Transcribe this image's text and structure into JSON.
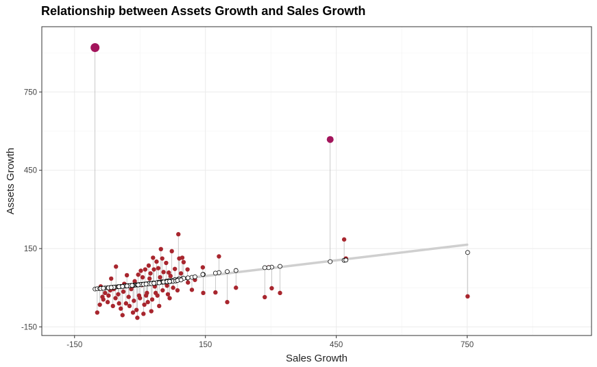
{
  "chart_data": {
    "type": "scatter",
    "title": "Relationship between Assets Growth and Sales Growth",
    "xlabel": "Sales Growth",
    "ylabel": "Assets Growth",
    "xlim": [
      -225,
      1035
    ],
    "ylim": [
      -183,
      1000
    ],
    "x_ticks": [
      -150,
      150,
      450,
      750
    ],
    "y_ticks": [
      -150,
      150,
      450,
      750
    ],
    "grid": true,
    "legend": "none",
    "regression_line": {
      "x": [
        -100,
        750
      ],
      "y": [
        -5,
        165
      ],
      "color": "#cfcfcf"
    },
    "colors": {
      "actual": "#a8262e",
      "outlier": "#a3155c",
      "predicted_stroke": "#000000",
      "residual": "#b3b3b3"
    },
    "points": [
      {
        "x": -103,
        "ya": 920,
        "yp": -5,
        "s": 3
      },
      {
        "x": 436,
        "ya": 568,
        "yp": 100,
        "s": 2
      },
      {
        "x": 468,
        "ya": 185,
        "yp": 105,
        "s": 1
      },
      {
        "x": 472,
        "ya": 112,
        "yp": 106,
        "s": 1
      },
      {
        "x": 751,
        "ya": -33,
        "yp": 135,
        "s": 1
      },
      {
        "x": 88,
        "ya": 205,
        "yp": 33,
        "s": 1
      },
      {
        "x": 321,
        "ya": -20,
        "yp": 82,
        "s": 1
      },
      {
        "x": 302,
        "ya": -2,
        "yp": 79,
        "s": 1
      },
      {
        "x": 295,
        "ya": 78,
        "yp": 77,
        "s": 1
      },
      {
        "x": 286,
        "ya": -36,
        "yp": 77,
        "s": 1
      },
      {
        "x": 181,
        "ya": 120,
        "yp": 58,
        "s": 1
      },
      {
        "x": 173,
        "ya": -18,
        "yp": 56,
        "s": 1
      },
      {
        "x": 200,
        "ya": -55,
        "yp": 62,
        "s": 1
      },
      {
        "x": 220,
        "ya": 0,
        "yp": 66,
        "s": 1
      },
      {
        "x": 145,
        "ya": -20,
        "yp": 51,
        "s": 1
      },
      {
        "x": 109,
        "ya": 70,
        "yp": 37,
        "s": 1
      },
      {
        "x": 97,
        "ya": 115,
        "yp": 35,
        "s": 1
      },
      {
        "x": 119,
        "ya": -8,
        "yp": 40,
        "s": 1
      },
      {
        "x": 144,
        "ya": 78,
        "yp": 51,
        "s": 1
      },
      {
        "x": 60,
        "ya": 95,
        "yp": 25,
        "s": 1
      },
      {
        "x": 51,
        "ya": 112,
        "yp": 23,
        "s": 1
      },
      {
        "x": 73,
        "ya": 140,
        "yp": 28,
        "s": 1
      },
      {
        "x": 80,
        "ya": 72,
        "yp": 31,
        "s": 1
      },
      {
        "x": 66,
        "ya": 58,
        "yp": 27,
        "s": 1
      },
      {
        "x": 42,
        "ya": 75,
        "yp": 21,
        "s": 1
      },
      {
        "x": 90,
        "ya": 112,
        "yp": 33,
        "s": 1
      },
      {
        "x": 30,
        "ya": 115,
        "yp": 18,
        "s": 1
      },
      {
        "x": 12,
        "ya": 70,
        "yp": 14,
        "s": 1
      },
      {
        "x": -55,
        "ya": 81,
        "yp": 3,
        "s": 1
      },
      {
        "x": 48,
        "ya": 148,
        "yp": 22,
        "s": 1
      },
      {
        "x": 100,
        "ya": 98,
        "yp": 36,
        "s": 1
      },
      {
        "x": -98,
        "ya": -95,
        "yp": -4,
        "s": 1
      },
      {
        "x": -92,
        "ya": -65,
        "yp": -3,
        "s": 1
      },
      {
        "x": -86,
        "ya": -35,
        "yp": -2,
        "s": 1
      },
      {
        "x": -80,
        "ya": -20,
        "yp": -1,
        "s": 1
      },
      {
        "x": -74,
        "ya": -55,
        "yp": 0,
        "s": 1
      },
      {
        "x": -68,
        "ya": -10,
        "yp": 1,
        "s": 1
      },
      {
        "x": -62,
        "ya": -70,
        "yp": 2,
        "s": 1
      },
      {
        "x": -56,
        "ya": -40,
        "yp": 3,
        "s": 1
      },
      {
        "x": -50,
        "ya": -25,
        "yp": 4,
        "s": 1
      },
      {
        "x": -44,
        "ya": -80,
        "yp": 5,
        "s": 1
      },
      {
        "x": -38,
        "ya": -15,
        "yp": 6,
        "s": 1
      },
      {
        "x": -32,
        "ya": -60,
        "yp": 7,
        "s": 1
      },
      {
        "x": -26,
        "ya": -35,
        "yp": 8,
        "s": 1
      },
      {
        "x": -20,
        "ya": -5,
        "yp": 9,
        "s": 1
      },
      {
        "x": -14,
        "ya": -50,
        "yp": 10,
        "s": 1
      },
      {
        "x": -8,
        "ya": -85,
        "yp": 11,
        "s": 1
      },
      {
        "x": -2,
        "ya": -30,
        "yp": 12,
        "s": 1
      },
      {
        "x": 4,
        "ya": 10,
        "yp": 13,
        "s": 1
      },
      {
        "x": 10,
        "ya": -65,
        "yp": 14,
        "s": 1
      },
      {
        "x": 16,
        "ya": -20,
        "yp": 15,
        "s": 1
      },
      {
        "x": 22,
        "ya": 35,
        "yp": 16,
        "s": 1
      },
      {
        "x": 28,
        "ya": -45,
        "yp": 17,
        "s": 1
      },
      {
        "x": 34,
        "ya": 5,
        "yp": 18,
        "s": 1
      },
      {
        "x": 40,
        "ya": -30,
        "yp": 19,
        "s": 1
      },
      {
        "x": 46,
        "ya": 40,
        "yp": 20,
        "s": 1
      },
      {
        "x": 52,
        "ya": -10,
        "yp": 21,
        "s": 1
      },
      {
        "x": 58,
        "ya": 20,
        "yp": 22,
        "s": 1
      },
      {
        "x": 64,
        "ya": -25,
        "yp": 23,
        "s": 1
      },
      {
        "x": 70,
        "ya": 45,
        "yp": 24,
        "s": 1
      },
      {
        "x": 76,
        "ya": 0,
        "yp": 25,
        "s": 1
      },
      {
        "x": 82,
        "ya": 30,
        "yp": 26,
        "s": 1
      },
      {
        "x": -90,
        "ya": 5,
        "yp": -3,
        "s": 1
      },
      {
        "x": -84,
        "ya": -45,
        "yp": -2,
        "s": 1
      },
      {
        "x": -72,
        "ya": -30,
        "yp": 0,
        "s": 1
      },
      {
        "x": -60,
        "ya": -5,
        "yp": 2,
        "s": 1
      },
      {
        "x": -48,
        "ya": -60,
        "yp": 4,
        "s": 1
      },
      {
        "x": -36,
        "ya": 15,
        "yp": 6,
        "s": 1
      },
      {
        "x": -24,
        "ya": -70,
        "yp": 8,
        "s": 1
      },
      {
        "x": -12,
        "ya": 25,
        "yp": 10,
        "s": 1
      },
      {
        "x": 0,
        "ya": -40,
        "yp": 12,
        "s": 1
      },
      {
        "x": 6,
        "ya": 40,
        "yp": 13,
        "s": 1
      },
      {
        "x": 18,
        "ya": -55,
        "yp": 15,
        "s": 1
      },
      {
        "x": 24,
        "ya": 55,
        "yp": 16,
        "s": 1
      },
      {
        "x": 36,
        "ya": -20,
        "yp": 18,
        "s": 1
      },
      {
        "x": 54,
        "ya": 60,
        "yp": 22,
        "s": 1
      },
      {
        "x": 62,
        "ya": 8,
        "yp": 23,
        "s": 1
      },
      {
        "x": 86,
        "ya": -10,
        "yp": 28,
        "s": 1
      },
      {
        "x": 94,
        "ya": 55,
        "yp": 30,
        "s": 1
      },
      {
        "x": -66,
        "ya": 35,
        "yp": 1,
        "s": 1
      },
      {
        "x": -30,
        "ya": 48,
        "yp": 7,
        "s": 1
      },
      {
        "x": 2,
        "ya": 65,
        "yp": 12,
        "s": 1
      },
      {
        "x": 20,
        "ya": 85,
        "yp": 15,
        "s": 1
      },
      {
        "x": 38,
        "ya": 100,
        "yp": 19,
        "s": 1
      },
      {
        "x": -16,
        "ya": -95,
        "yp": 9,
        "s": 1
      },
      {
        "x": 8,
        "ya": -100,
        "yp": 13,
        "s": 1
      },
      {
        "x": 26,
        "ya": -90,
        "yp": 16,
        "s": 1
      },
      {
        "x": -40,
        "ya": -105,
        "yp": 5,
        "s": 1
      },
      {
        "x": -6,
        "ya": -115,
        "yp": 11,
        "s": 1
      },
      {
        "x": 110,
        "ya": 20,
        "yp": 38,
        "s": 1
      },
      {
        "x": 126,
        "ya": 30,
        "yp": 42,
        "s": 1
      },
      {
        "x": 44,
        "ya": -70,
        "yp": 19,
        "s": 1
      },
      {
        "x": 14,
        "ya": -30,
        "yp": 14,
        "s": 1
      },
      {
        "x": -4,
        "ya": 50,
        "yp": 11,
        "s": 1
      },
      {
        "x": 32,
        "ya": 70,
        "yp": 17,
        "s": 1
      },
      {
        "x": -18,
        "ya": 5,
        "yp": 9,
        "s": 1
      },
      {
        "x": 68,
        "ya": -40,
        "yp": 24,
        "s": 1
      }
    ]
  }
}
